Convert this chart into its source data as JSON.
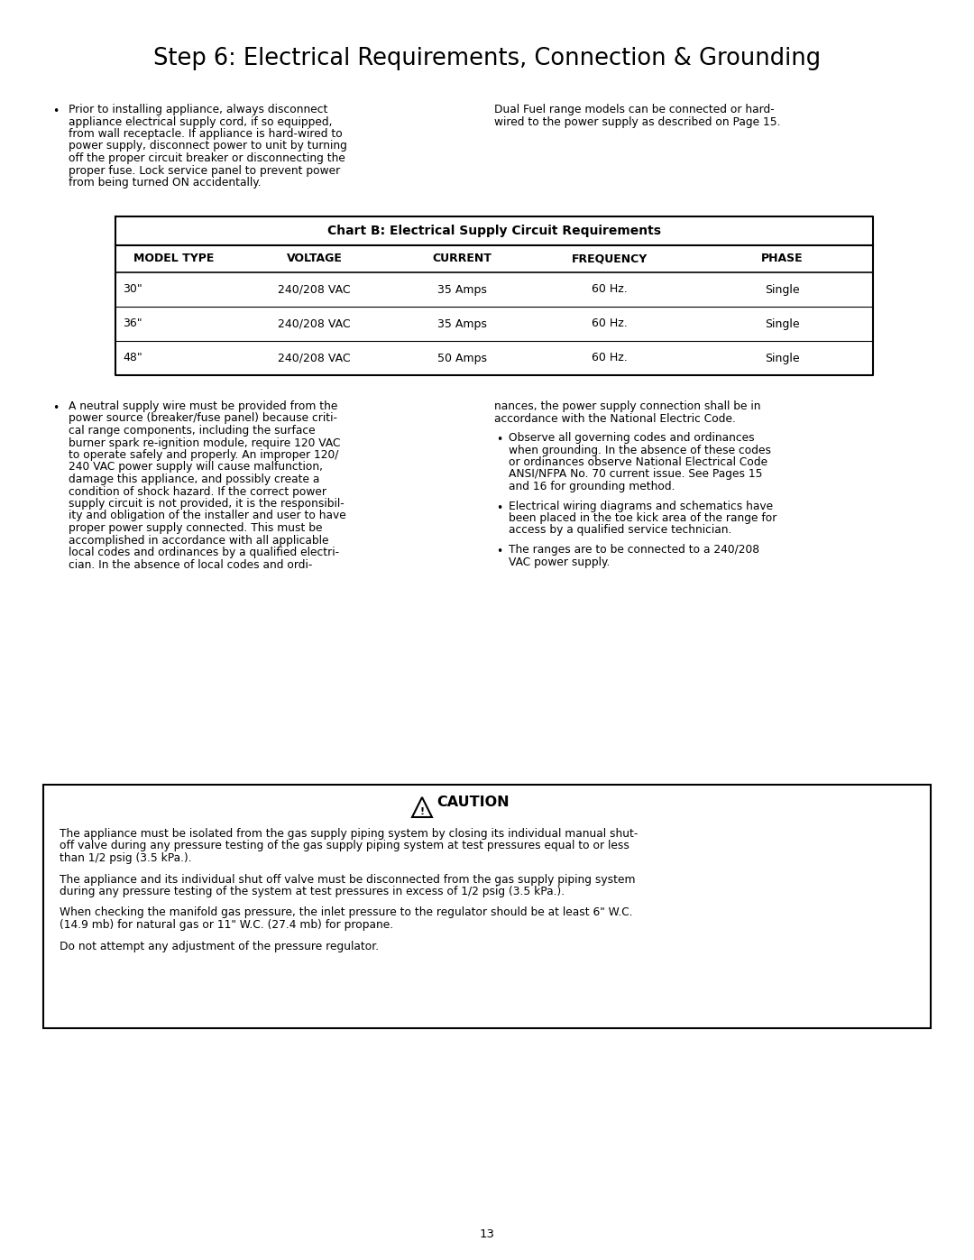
{
  "title": "Step 6: Electrical Requirements, Connection & Grounding",
  "bg_color": "#ffffff",
  "text_color": "#000000",
  "page_number": "13",
  "bullet1_left_lines": [
    "Prior to installing appliance, always disconnect",
    "appliance electrical supply cord, if so equipped,",
    "from wall receptacle. If appliance is hard-wired to",
    "power supply, disconnect power to unit by turning",
    "off the proper circuit breaker or disconnecting the",
    "proper fuse. Lock service panel to prevent power",
    "from being turned ON accidentally."
  ],
  "bullet1_right_lines": [
    "Dual Fuel range models can be connected or hard-",
    "wired to the power supply as described on Page 15."
  ],
  "chart_title": "Chart B: Electrical Supply Circuit Requirements",
  "table_headers": [
    "MODEL TYPE",
    "VOLTAGE",
    "CURRENT",
    "FREQUENCY",
    "PHASE"
  ],
  "table_rows": [
    [
      "30\"",
      "240/208 VAC",
      "35 Amps",
      "60 Hz.",
      "Single"
    ],
    [
      "36\"",
      "240/208 VAC",
      "35 Amps",
      "60 Hz.",
      "Single"
    ],
    [
      "48\"",
      "240/208 VAC",
      "50 Amps",
      "60 Hz.",
      "Single"
    ]
  ],
  "bullet2_left_lines": [
    "A neutral supply wire must be provided from the",
    "power source (breaker/fuse panel) because criti-",
    "cal range components, including the surface",
    "burner spark re-ignition module, require 120 VAC",
    "to operate safely and properly. An improper 120/",
    "240 VAC power supply will cause malfunction,",
    "damage this appliance, and possibly create a",
    "condition of shock hazard. If the correct power",
    "supply circuit is not provided, it is the responsibil-",
    "ity and obligation of the installer and user to have",
    "proper power supply connected. This must be",
    "accomplished in accordance with all applicable",
    "local codes and ordinances by a qualified electri-",
    "cian. In the absence of local codes and ordi-"
  ],
  "bullet2_right_cont_lines": [
    "nances, the power supply connection shall be in",
    "accordance with the National Electric Code."
  ],
  "bullet2_right_b1_lines": [
    "Observe all governing codes and ordinances",
    "when grounding. In the absence of these codes",
    "or ordinances observe National Electrical Code",
    "ANSI/NFPA No. 70 current issue. See Pages 15",
    "and 16 for grounding method."
  ],
  "bullet2_right_b2_lines": [
    "Electrical wiring diagrams and schematics have",
    "been placed in the toe kick area of the range for",
    "access by a qualified service technician."
  ],
  "bullet2_right_b3_lines": [
    "The ranges are to be connected to a 240/208",
    "VAC power supply."
  ],
  "caution_title": "CAUTION",
  "caution_p1_lines": [
    "The appliance must be isolated from the gas supply piping system by closing its individual manual shut-",
    "off valve during any pressure testing of the gas supply piping system at test pressures equal to or less",
    "than 1/2 psig (3.5 kPa.)."
  ],
  "caution_p2_lines": [
    "The appliance and its individual shut off valve must be disconnected from the gas supply piping system",
    "during any pressure testing of the system at test pressures in excess of 1/2 psig (3.5 kPa.)."
  ],
  "caution_p3_lines": [
    "When checking the manifold gas pressure, the inlet pressure to the regulator should be at least 6\" W.C.",
    "(14.9 mb) for natural gas or 11\" W.C. (27.4 mb) for propane."
  ],
  "caution_p4_lines": [
    "Do not attempt any adjustment of the pressure regulator."
  ]
}
